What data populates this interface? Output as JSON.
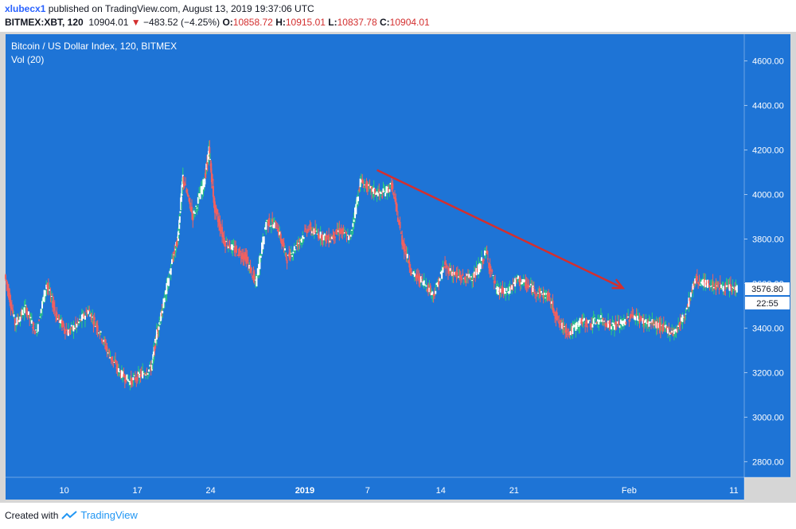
{
  "header": {
    "author": "xlubecx1",
    "published": "published on TradingView.com, August 13, 2019 19:37:06 UTC",
    "symbol": "BITMEX:XBT, 120",
    "last": "10904.01",
    "change": "−483.52 (−4.25%)",
    "open_label": "O:",
    "open": "10858.72",
    "high_label": "H:",
    "high": "10915.01",
    "low_label": "L:",
    "low": "10837.78",
    "close_label": "C:",
    "close": "10904.01"
  },
  "legend": {
    "title": "Bitcoin / US Dollar Index, 120, BITMEX",
    "indicator": "Vol (20)"
  },
  "price_badge": {
    "value": "3576.80",
    "countdown": "22:55"
  },
  "footer": {
    "created": "Created with",
    "brand": "TradingView"
  },
  "colors": {
    "background": "#1e74d6",
    "up": "#2ecf7a",
    "down": "#f06060",
    "annotation_arrow": "#d32f2f"
  },
  "chart_data": {
    "type": "line",
    "title": "Bitcoin / US Dollar Index, 120, BITMEX",
    "xlabel": "",
    "ylabel": "",
    "y_ticks": [
      "4600.00",
      "4400.00",
      "4200.00",
      "4000.00",
      "3800.00",
      "3600.00",
      "3400.00",
      "3200.00",
      "3000.00",
      "2800.00"
    ],
    "ylim": [
      2730,
      4720
    ],
    "x_ticks": [
      "10",
      "17",
      "24",
      "2019",
      "7",
      "14",
      "21",
      "Feb",
      "11"
    ],
    "x_tick_index": [
      1.6,
      8.6,
      15.6,
      24.6,
      30.6,
      37.6,
      44.6,
      55.6,
      65.6
    ],
    "xlim": [
      -4,
      66.6
    ],
    "grid": false,
    "series": [
      {
        "values": [
          [
            -4.0,
            3640
          ],
          [
            -3.0,
            3420
          ],
          [
            -2.0,
            3490
          ],
          [
            -1.0,
            3380
          ],
          [
            0.0,
            3600
          ],
          [
            1.0,
            3450
          ],
          [
            2.0,
            3380
          ],
          [
            3.0,
            3420
          ],
          [
            4.0,
            3480
          ],
          [
            5.0,
            3390
          ],
          [
            6.0,
            3280
          ],
          [
            7.0,
            3200
          ],
          [
            8.0,
            3160
          ],
          [
            9.0,
            3190
          ],
          [
            10.0,
            3220
          ],
          [
            10.5,
            3380
          ],
          [
            11.0,
            3470
          ],
          [
            12.0,
            3700
          ],
          [
            12.5,
            3800
          ],
          [
            13.0,
            4080
          ],
          [
            14.0,
            3900
          ],
          [
            15.0,
            4050
          ],
          [
            15.5,
            4200
          ],
          [
            16.0,
            3950
          ],
          [
            17.0,
            3790
          ],
          [
            18.0,
            3750
          ],
          [
            19.0,
            3720
          ],
          [
            20.0,
            3600
          ],
          [
            21.0,
            3880
          ],
          [
            22.0,
            3860
          ],
          [
            23.0,
            3710
          ],
          [
            24.0,
            3780
          ],
          [
            25.0,
            3850
          ],
          [
            26.0,
            3820
          ],
          [
            27.0,
            3800
          ],
          [
            28.0,
            3840
          ],
          [
            29.0,
            3800
          ],
          [
            30.0,
            4060
          ],
          [
            31.0,
            4020
          ],
          [
            32.0,
            4000
          ],
          [
            33.0,
            4040
          ],
          [
            34.0,
            3790
          ],
          [
            35.0,
            3640
          ],
          [
            36.0,
            3610
          ],
          [
            37.0,
            3550
          ],
          [
            38.0,
            3680
          ],
          [
            39.0,
            3640
          ],
          [
            40.0,
            3620
          ],
          [
            41.0,
            3640
          ],
          [
            42.0,
            3740
          ],
          [
            43.0,
            3570
          ],
          [
            44.0,
            3560
          ],
          [
            45.0,
            3620
          ],
          [
            46.0,
            3590
          ],
          [
            47.0,
            3560
          ],
          [
            48.0,
            3540
          ],
          [
            49.0,
            3420
          ],
          [
            50.0,
            3380
          ],
          [
            51.0,
            3430
          ],
          [
            52.0,
            3420
          ],
          [
            53.0,
            3440
          ],
          [
            54.0,
            3410
          ],
          [
            55.0,
            3420
          ],
          [
            56.0,
            3460
          ],
          [
            57.0,
            3430
          ],
          [
            58.0,
            3420
          ],
          [
            59.0,
            3400
          ],
          [
            60.0,
            3380
          ],
          [
            61.0,
            3460
          ],
          [
            62.0,
            3620
          ],
          [
            63.0,
            3600
          ],
          [
            64.0,
            3590
          ],
          [
            65.0,
            3580
          ],
          [
            66.0,
            3576.8
          ]
        ]
      }
    ],
    "annotations": [
      {
        "type": "arrow",
        "from": [
          31.5,
          4110
        ],
        "to": [
          55.0,
          3580
        ]
      }
    ]
  }
}
